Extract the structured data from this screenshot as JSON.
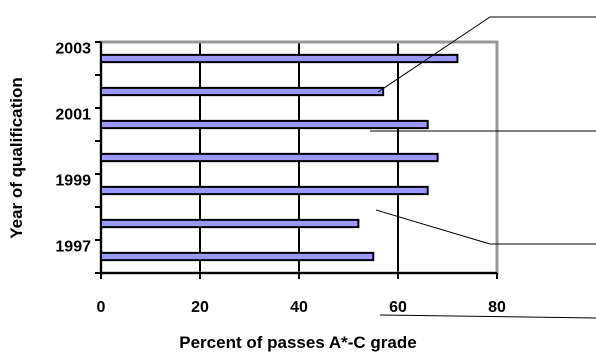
{
  "chart_data": {
    "type": "bar",
    "orientation": "horizontal",
    "categories": [
      "1997",
      "1998",
      "1999",
      "2000",
      "2001",
      "2002",
      "2003"
    ],
    "values": [
      55,
      52,
      66,
      68,
      66,
      57,
      72
    ],
    "category_tick_labels": [
      "1997",
      "1999",
      "2001",
      "2003"
    ],
    "xlabel": "Percent of passes A*-C grade",
    "ylabel": "Year of qualification",
    "xlim": [
      0,
      80
    ],
    "xticks": [
      0,
      20,
      40,
      60,
      80
    ],
    "grid": "vertical",
    "legend": "none",
    "colors": {
      "bar_fill": "#9999ff",
      "bar_stroke": "#000000",
      "frame": "#999999",
      "grid": "#000000"
    }
  }
}
